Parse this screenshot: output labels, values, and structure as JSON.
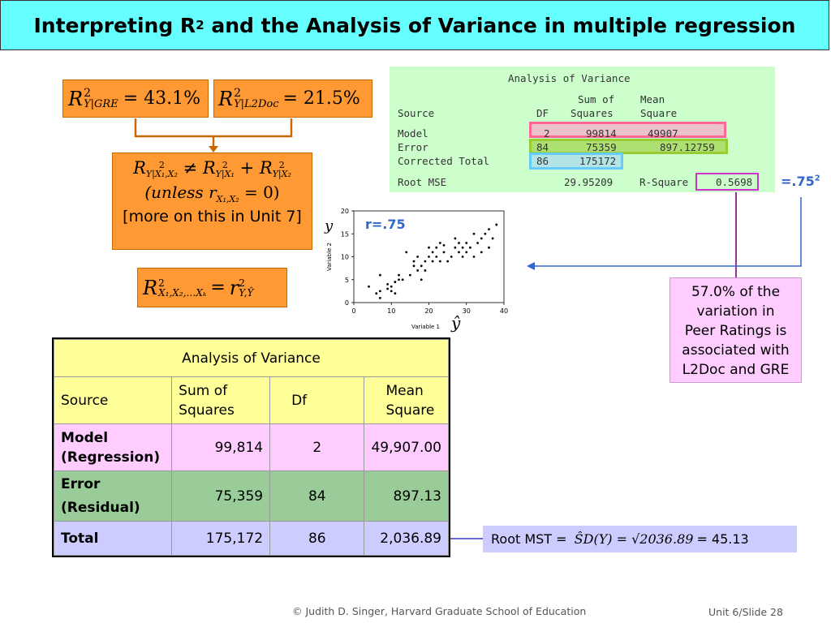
{
  "title": {
    "prefix": "Interpreting R",
    "sup": "2",
    "suffix": " and the Analysis of Variance in multiple regression"
  },
  "formulas": {
    "r2_gre": {
      "R": "R",
      "sup": "2",
      "sub": "Y|GRE",
      "rhs": "= 43.1%"
    },
    "r2_l2doc": {
      "R": "R",
      "sup": "2",
      "sub": "Y|L2Doc",
      "rhs": "= 21.5%"
    },
    "ineq": {
      "lhs_sub": "Y|X₁,X₂",
      "neq": "≠",
      "t1_sub": "Y|X₁",
      "plus": "+",
      "t2_sub": "Y|X₂",
      "unless_open": "(unless ",
      "r": "r",
      "r_sub": "X₁,X₂",
      "unless_close": " = 0)",
      "more": "[more on this in Unit 7]"
    },
    "multiple_r": {
      "lhs_sub": "X₁,X₂,…Xₖ",
      "eq": "=",
      "r": "r",
      "r_sup": "2",
      "r_sub": "Y,Ŷ"
    }
  },
  "sas": {
    "heading": "Analysis of Variance",
    "col_sum_of": "Sum of",
    "col_mean": "Mean",
    "col_source": "Source",
    "col_df": "DF",
    "col_squares": "Squares",
    "col_square": "Square",
    "model": {
      "label": "Model",
      "df": "2",
      "ss": "99814",
      "ms": "49907"
    },
    "error": {
      "label": "Error",
      "df": "84",
      "ss": "75359",
      "ms": "897.12759"
    },
    "total": {
      "label": "Corrected Total",
      "df": "86",
      "ss": "175172"
    },
    "root_mse_label": "Root MSE",
    "root_mse": "29.95209",
    "rsq_label": "R-Square",
    "rsq": "0.5698"
  },
  "r2_note": {
    "text": "=.75",
    "sup": "2"
  },
  "scatter": {
    "r_label": "r=.75",
    "y_symbol": "y",
    "yhat_symbol": "ŷ",
    "chart_data": {
      "type": "scatter",
      "xlabel": "Variable 1",
      "ylabel": "Variable 2",
      "xlim": [
        0,
        40
      ],
      "ylim": [
        0,
        20
      ],
      "x_ticks": [
        "0",
        "10",
        "20",
        "30",
        "40"
      ],
      "y_ticks": [
        "0",
        "5",
        "10",
        "15",
        "20"
      ],
      "points": [
        [
          4,
          3.5
        ],
        [
          6,
          2
        ],
        [
          7,
          2.5
        ],
        [
          7,
          6
        ],
        [
          7,
          1
        ],
        [
          9,
          3
        ],
        [
          9,
          4
        ],
        [
          10,
          2.5
        ],
        [
          10,
          3.5
        ],
        [
          11,
          4.5
        ],
        [
          11,
          2
        ],
        [
          12,
          5
        ],
        [
          12,
          6
        ],
        [
          13,
          5
        ],
        [
          14,
          11
        ],
        [
          15,
          6
        ],
        [
          16,
          8
        ],
        [
          16,
          9
        ],
        [
          17,
          7
        ],
        [
          17,
          10
        ],
        [
          18,
          5
        ],
        [
          18,
          8
        ],
        [
          19,
          7
        ],
        [
          19,
          9
        ],
        [
          20,
          10
        ],
        [
          20,
          12
        ],
        [
          21,
          11
        ],
        [
          21,
          9
        ],
        [
          22,
          10
        ],
        [
          22,
          12
        ],
        [
          23,
          13
        ],
        [
          23,
          9
        ],
        [
          24,
          11
        ],
        [
          24,
          12.5
        ],
        [
          25,
          9
        ],
        [
          26,
          10
        ],
        [
          27,
          14
        ],
        [
          27,
          12
        ],
        [
          28,
          11
        ],
        [
          28,
          13
        ],
        [
          29,
          12
        ],
        [
          29,
          10
        ],
        [
          30,
          13
        ],
        [
          30,
          11
        ],
        [
          31,
          12
        ],
        [
          32,
          15
        ],
        [
          32,
          10
        ],
        [
          33,
          13
        ],
        [
          34,
          14
        ],
        [
          34,
          11
        ],
        [
          35,
          15
        ],
        [
          36,
          16
        ],
        [
          36,
          12
        ],
        [
          37,
          14
        ],
        [
          38,
          17
        ]
      ]
    }
  },
  "callout": {
    "lines": [
      "57.0% of the",
      "variation in",
      "Peer Ratings is",
      "associated with",
      "L2Doc and GRE"
    ]
  },
  "anova": {
    "title": "Analysis of Variance",
    "headers": {
      "source": "Source",
      "ss_1": "Sum of",
      "ss_2": "Squares",
      "df": "Df",
      "ms_1": "Mean",
      "ms_2": "Square"
    },
    "model": {
      "label_1": "Model",
      "label_2": "(Regression)",
      "ss": "99,814",
      "df": "2",
      "ms": "49,907.00"
    },
    "error": {
      "label_1": "Error",
      "label_2": "(Residual)",
      "ss": "75,359",
      "df": "84",
      "ms": "897.13"
    },
    "total": {
      "label": "Total",
      "ss": "175,172",
      "df": "86",
      "ms": "2,036.89"
    }
  },
  "root_mst": {
    "label": "Root MST = ",
    "formula": "ŜD(Y) = √2036.89",
    "result": "= 45.13"
  },
  "footer": {
    "credit": "© Judith D. Singer, Harvard Graduate School of Education",
    "slide": "Unit 6/Slide 28"
  },
  "colors": {
    "title_bg": "#66ffff",
    "orange": "#ff9933",
    "sas_bg": "#ccffcc",
    "pink": "#ffccff",
    "anova_header": "#ffff99",
    "anova_model": "#ffccff",
    "anova_error": "#99cc99",
    "anova_total": "#ccccff"
  }
}
